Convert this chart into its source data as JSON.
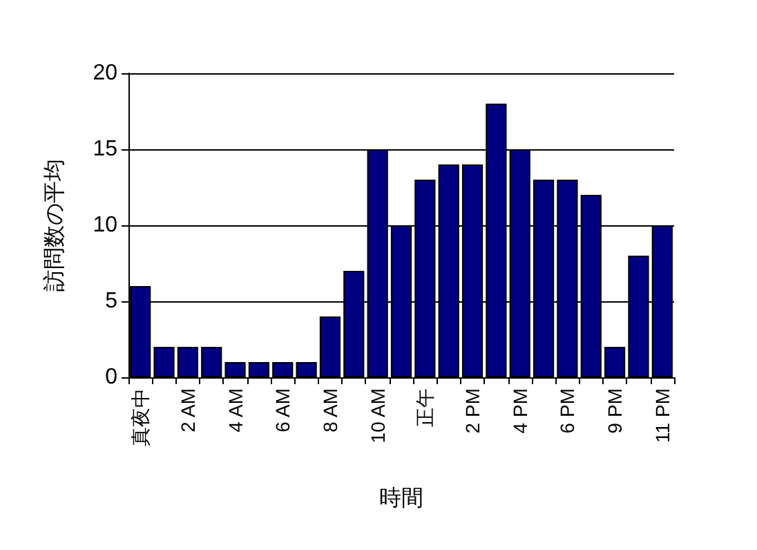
{
  "chart_data": {
    "type": "bar",
    "xlabel": "時間",
    "ylabel": "訪問数の平均",
    "categories": [
      "真夜中",
      null,
      "2 AM",
      null,
      "4 AM",
      null,
      "6 AM",
      null,
      "8 AM",
      null,
      "10 AM",
      null,
      "正午",
      null,
      "2 PM",
      null,
      "4 PM",
      null,
      "6 PM",
      null,
      "9 PM",
      null,
      "11 PM"
    ],
    "values": [
      6,
      2,
      2,
      2,
      1,
      1,
      1,
      1,
      4,
      7,
      15,
      10,
      13,
      14,
      14,
      18,
      15,
      13,
      13,
      12,
      2,
      8,
      10
    ],
    "color": "#000080",
    "ylim": [
      0,
      20
    ],
    "yticks": [
      0,
      5,
      10,
      15,
      20
    ],
    "grid": "y"
  }
}
